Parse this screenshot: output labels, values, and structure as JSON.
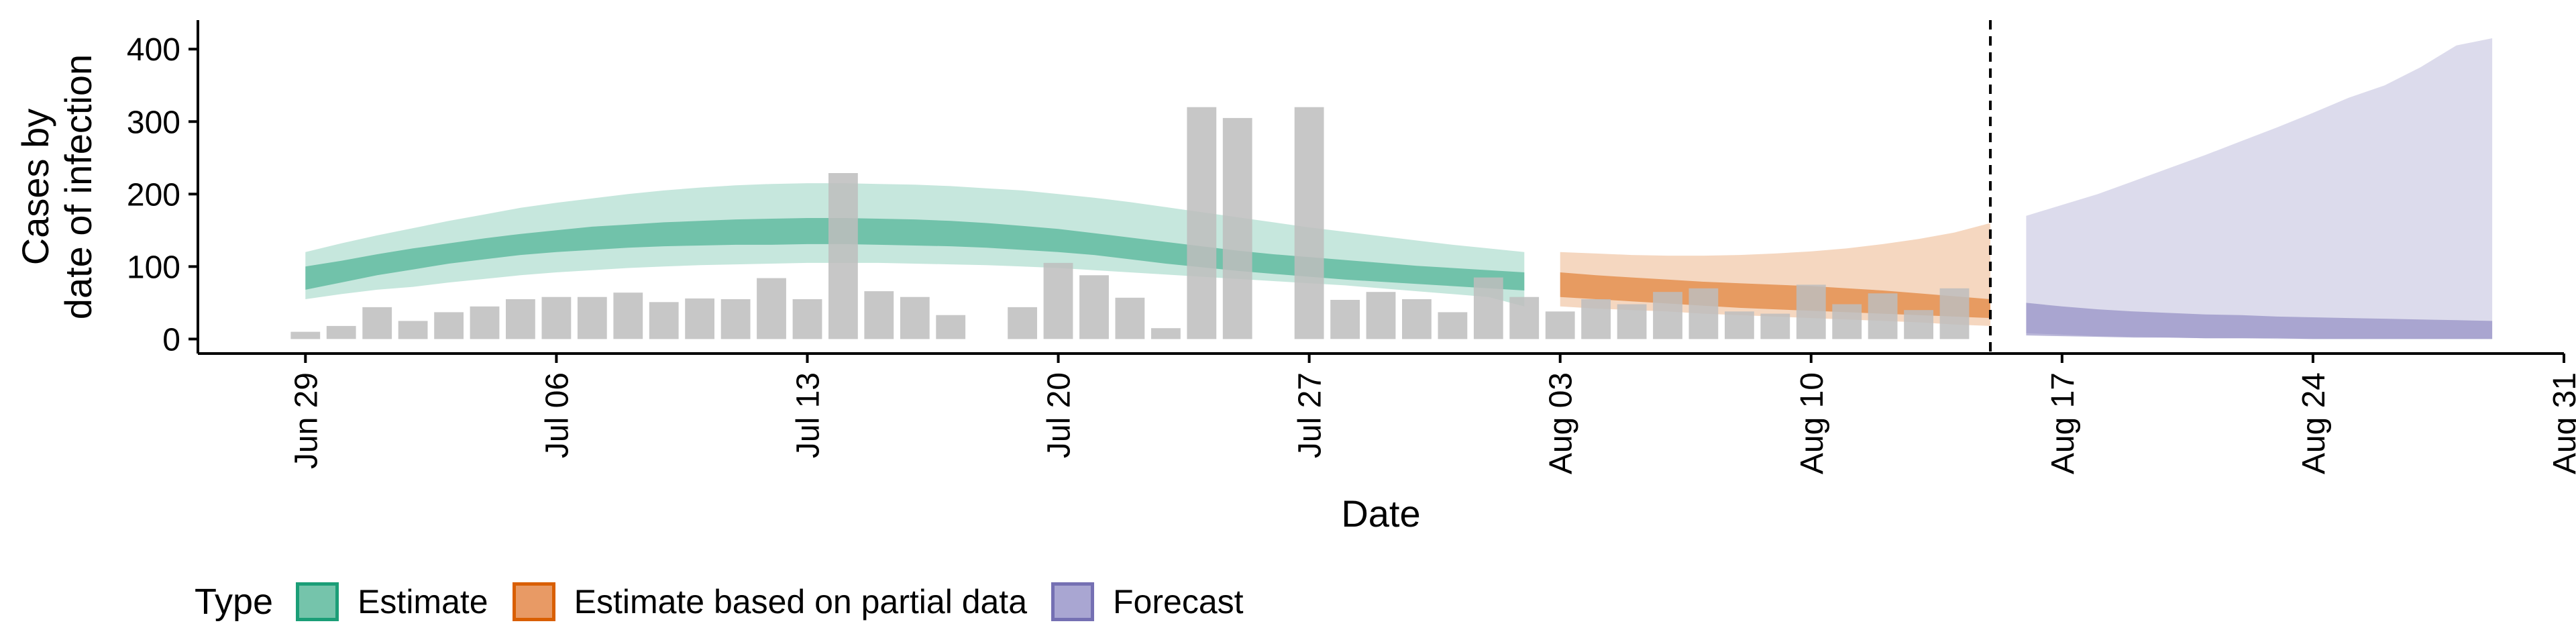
{
  "chart_data": {
    "type": "bar",
    "xlabel": "Date",
    "ylabel": [
      "Cases by",
      "date of infection"
    ],
    "ylim": [
      -20,
      440
    ],
    "xlim": [
      "2020-06-26",
      "2020-08-31"
    ],
    "yticks": [
      0,
      100,
      200,
      300,
      400
    ],
    "xticks": [
      {
        "date": "2020-06-29",
        "label": "Jun 29"
      },
      {
        "date": "2020-07-06",
        "label": "Jul 06"
      },
      {
        "date": "2020-07-13",
        "label": "Jul 13"
      },
      {
        "date": "2020-07-20",
        "label": "Jul 20"
      },
      {
        "date": "2020-07-27",
        "label": "Jul 27"
      },
      {
        "date": "2020-08-03",
        "label": "Aug 03"
      },
      {
        "date": "2020-08-10",
        "label": "Aug 10"
      },
      {
        "date": "2020-08-17",
        "label": "Aug 17"
      },
      {
        "date": "2020-08-24",
        "label": "Aug 24"
      },
      {
        "date": "2020-08-31",
        "label": "Aug 31"
      }
    ],
    "grid": false,
    "legend_position": "bottom",
    "reference_line_date": "2020-08-15",
    "bar_color": "#bdbdbd",
    "bars": {
      "start_date": "2020-06-29",
      "values": [
        10,
        18,
        44,
        25,
        37,
        45,
        55,
        58,
        58,
        64,
        51,
        56,
        55,
        84,
        55,
        229,
        66,
        58,
        33,
        null,
        44,
        105,
        88,
        57,
        15,
        320,
        305,
        null,
        320,
        54,
        65,
        55,
        37,
        85,
        58,
        38,
        55,
        48,
        65,
        70,
        38,
        35,
        75,
        48,
        63,
        40,
        70
      ]
    },
    "series": [
      {
        "name": "Estimate",
        "color": "#1b9e77",
        "start_date": "2020-06-29",
        "outer_lower": [
          55,
          62,
          68,
          72,
          78,
          83,
          88,
          92,
          95,
          98,
          100,
          102,
          103,
          104,
          105,
          105,
          105,
          104,
          103,
          102,
          100,
          98,
          95,
          92,
          89,
          86,
          83,
          80,
          77,
          74,
          70,
          66,
          62,
          58,
          45
        ],
        "outer_upper": [
          120,
          132,
          143,
          153,
          163,
          172,
          181,
          188,
          194,
          200,
          205,
          209,
          212,
          214,
          215,
          215,
          214,
          213,
          211,
          208,
          205,
          200,
          195,
          189,
          182,
          175,
          168,
          161,
          154,
          148,
          142,
          136,
          130,
          125,
          120
        ],
        "inner_lower": [
          68,
          78,
          88,
          96,
          104,
          110,
          116,
          120,
          123,
          126,
          128,
          129,
          130,
          130,
          131,
          131,
          130,
          129,
          128,
          126,
          123,
          120,
          116,
          110,
          104,
          99,
          94,
          90,
          86,
          82,
          79,
          76,
          73,
          70,
          67
        ],
        "inner_upper": [
          100,
          108,
          117,
          125,
          132,
          139,
          145,
          150,
          155,
          158,
          161,
          163,
          165,
          166,
          167,
          167,
          166,
          165,
          163,
          160,
          156,
          152,
          146,
          140,
          134,
          128,
          122,
          117,
          113,
          109,
          105,
          101,
          98,
          95,
          92
        ]
      },
      {
        "name": "Estimate based on partial data",
        "color": "#d95f02",
        "start_date": "2020-08-03",
        "outer_lower": [
          45,
          42,
          40,
          38,
          35,
          33,
          31,
          29,
          27,
          25,
          23,
          20,
          18
        ],
        "outer_upper": [
          120,
          118,
          116,
          115,
          115,
          116,
          118,
          121,
          125,
          131,
          138,
          147,
          160
        ],
        "inner_lower": [
          58,
          55,
          52,
          49,
          46,
          43,
          41,
          39,
          37,
          35,
          33,
          31,
          29
        ],
        "inner_upper": [
          92,
          88,
          85,
          82,
          79,
          77,
          75,
          73,
          70,
          67,
          63,
          59,
          55
        ]
      },
      {
        "name": "Forecast",
        "color": "#7570b3",
        "start_date": "2020-08-16",
        "outer_lower": [
          8,
          6,
          4,
          3,
          2,
          1,
          1,
          0,
          0,
          0,
          0,
          0,
          0,
          0
        ],
        "outer_upper": [
          170,
          185,
          200,
          218,
          236,
          254,
          273,
          292,
          312,
          333,
          350,
          375,
          405,
          415
        ],
        "inner_lower": [
          5,
          4,
          3,
          2,
          2,
          1,
          1,
          1,
          0,
          0,
          0,
          0,
          0,
          0
        ],
        "inner_upper": [
          50,
          45,
          41,
          38,
          36,
          34,
          33,
          31,
          30,
          29,
          28,
          27,
          26,
          25
        ]
      }
    ]
  },
  "legend": {
    "title": "Type",
    "items": [
      {
        "label": "Estimate",
        "color": "#1b9e77",
        "fill": "#75c4ab"
      },
      {
        "label": "Estimate based on partial data",
        "color": "#d95f02",
        "fill": "#e89a65"
      },
      {
        "label": "Forecast",
        "color": "#7570b3",
        "fill": "#a9a6d2"
      }
    ]
  }
}
